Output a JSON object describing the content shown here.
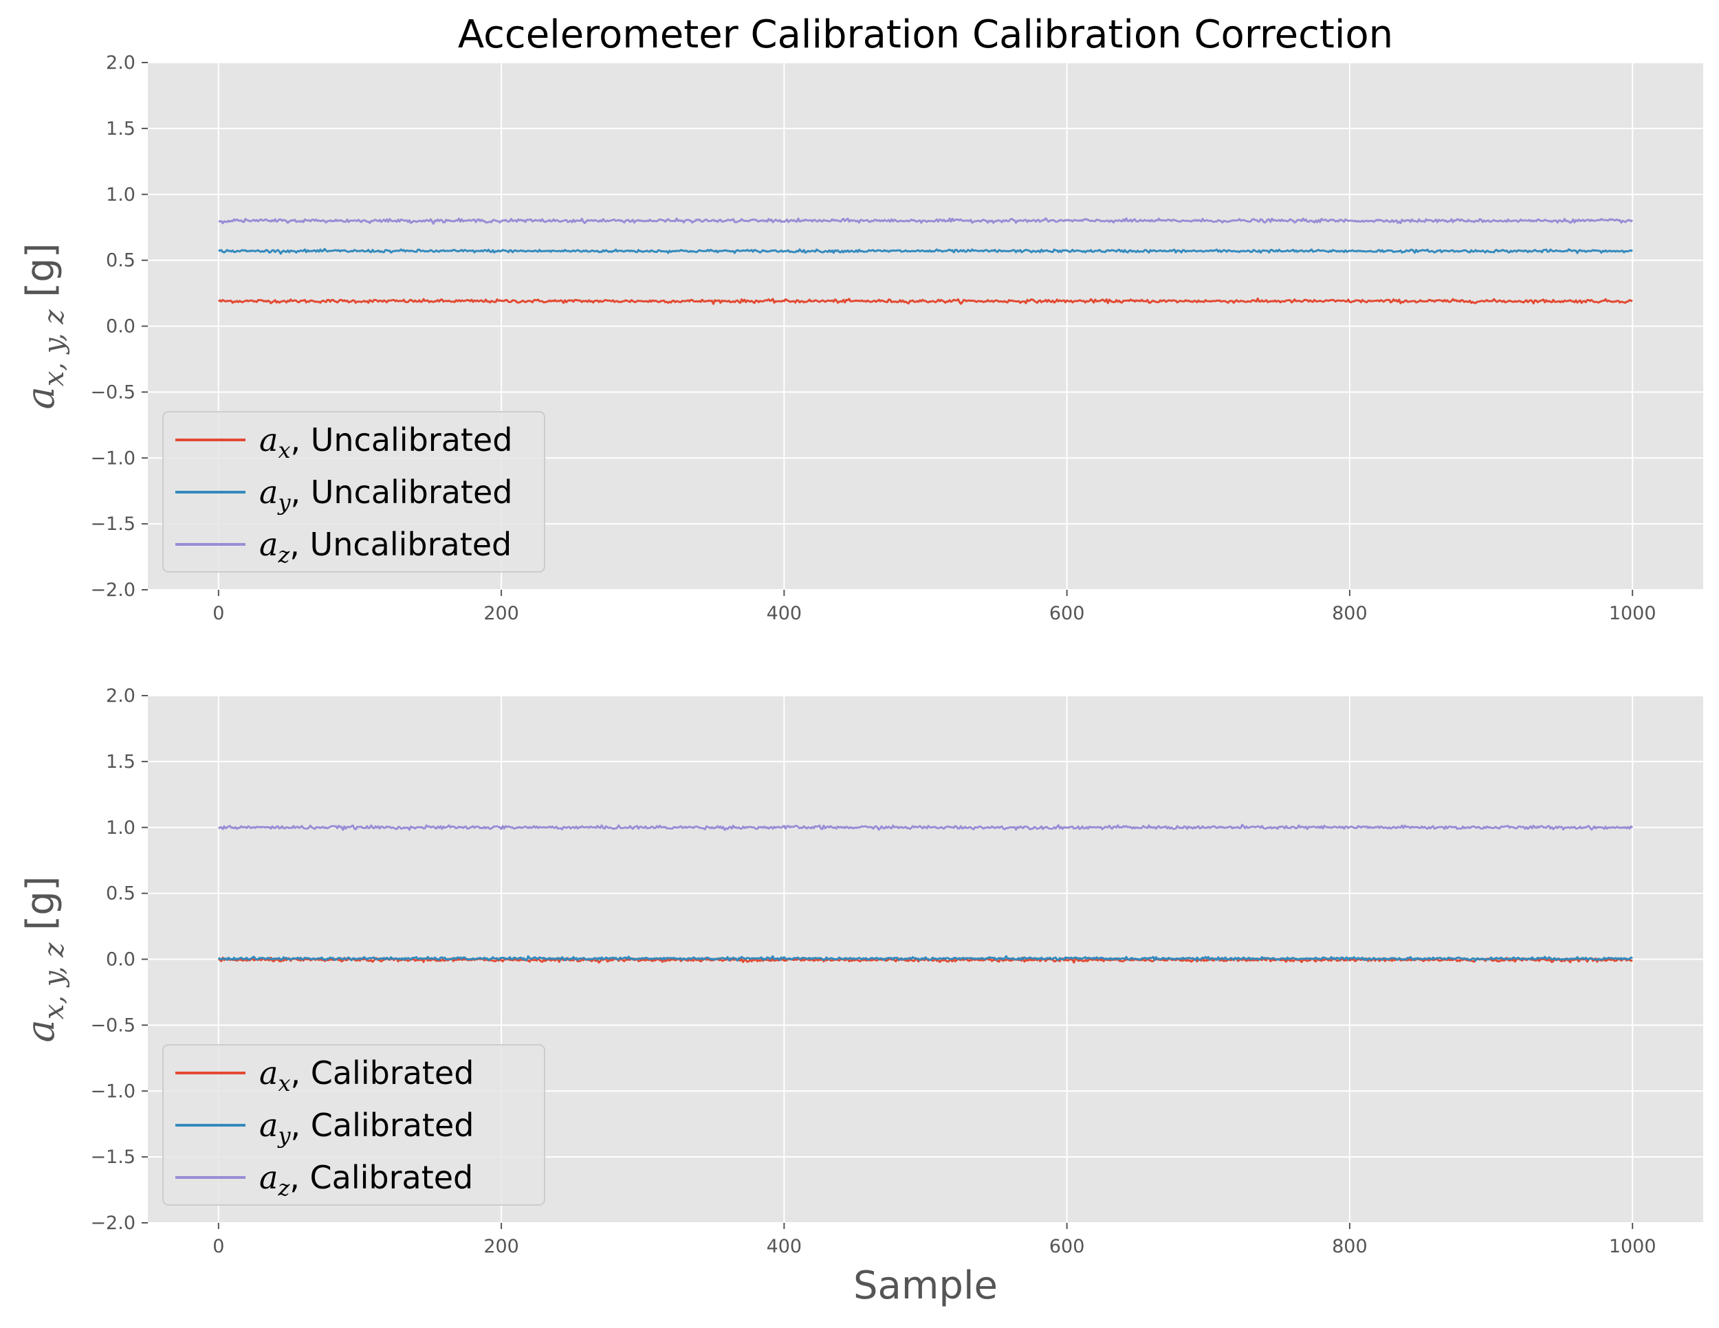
{
  "chart_data": [
    {
      "type": "line",
      "title": "Accelerometer Calibration Calibration Correction",
      "xlabel": "",
      "ylabel": "a_{x,y,z} [g]",
      "ylabel_parts": {
        "var": "a",
        "sub": "x, y, z",
        "unit": " [g]"
      },
      "xlim": [
        -50,
        1050
      ],
      "ylim": [
        -2.0,
        2.0
      ],
      "xticks": [
        0,
        200,
        400,
        600,
        800,
        1000
      ],
      "yticks": [
        "2.0",
        "1.5",
        "1.0",
        "0.5",
        "0.0",
        "−0.5",
        "−1.0",
        "−1.5",
        "−2.0"
      ],
      "ytick_values": [
        2.0,
        1.5,
        1.0,
        0.5,
        0.0,
        -0.5,
        -1.0,
        -1.5,
        -2.0
      ],
      "grid": true,
      "legend": "lower-left",
      "x": {
        "start": 0,
        "end": 1000,
        "count": 1001
      },
      "series": [
        {
          "name": "a_x, Uncalibrated",
          "var": "a",
          "sub": "x",
          "suffix": ", Uncalibrated",
          "color": "#E24A33",
          "mean": 0.19,
          "noise": 0.006
        },
        {
          "name": "a_y, Uncalibrated",
          "var": "a",
          "sub": "y",
          "suffix": ", Uncalibrated",
          "color": "#348ABD",
          "mean": 0.57,
          "noise": 0.005
        },
        {
          "name": "a_z, Uncalibrated",
          "var": "a",
          "sub": "z",
          "suffix": ", Uncalibrated",
          "color": "#988ED5",
          "mean": 0.8,
          "noise": 0.006
        }
      ]
    },
    {
      "type": "line",
      "title": "",
      "xlabel": "Sample",
      "ylabel": "a_{x,y,z} [g]",
      "ylabel_parts": {
        "var": "a",
        "sub": "x, y, z",
        "unit": " [g]"
      },
      "xlim": [
        -50,
        1050
      ],
      "ylim": [
        -2.0,
        2.0
      ],
      "xticks": [
        0,
        200,
        400,
        600,
        800,
        1000
      ],
      "yticks": [
        "2.0",
        "1.5",
        "1.0",
        "0.5",
        "0.0",
        "−0.5",
        "−1.0",
        "−1.5",
        "−2.0"
      ],
      "ytick_values": [
        2.0,
        1.5,
        1.0,
        0.5,
        0.0,
        -0.5,
        -1.0,
        -1.5,
        -2.0
      ],
      "grid": true,
      "legend": "lower-left",
      "x": {
        "start": 0,
        "end": 1000,
        "count": 1001
      },
      "series": [
        {
          "name": "a_x, Calibrated",
          "var": "a",
          "sub": "x",
          "suffix": ", Calibrated",
          "color": "#E24A33",
          "mean": -0.005,
          "noise": 0.006
        },
        {
          "name": "a_y, Calibrated",
          "var": "a",
          "sub": "y",
          "suffix": ", Calibrated",
          "color": "#348ABD",
          "mean": 0.005,
          "noise": 0.005
        },
        {
          "name": "a_z, Calibrated",
          "var": "a",
          "sub": "z",
          "suffix": ", Calibrated",
          "color": "#988ED5",
          "mean": 1.0,
          "noise": 0.006
        }
      ]
    }
  ]
}
